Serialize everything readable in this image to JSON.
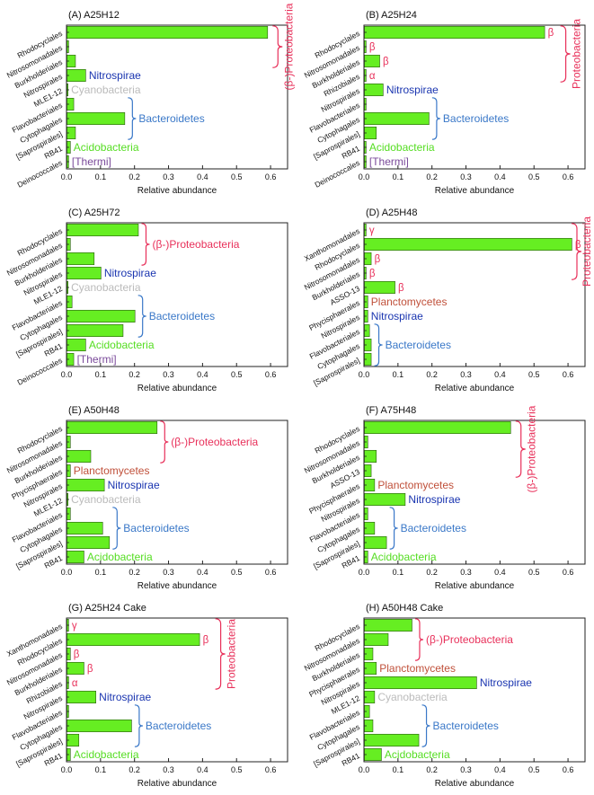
{
  "colors": {
    "bar_fill": "#66ee22",
    "bar_stroke": "#2a5a10",
    "proteo": "#e8305a",
    "nitro": "#1a35b0",
    "bactero": "#3a78c8",
    "acido": "#55dd22",
    "cyano": "#bbbbbb",
    "thermi": "#7a4a9a",
    "plancto": "#c0503a"
  },
  "chart_data": [
    {
      "type": "bar",
      "orientation": "horizontal",
      "title": "(A) A25H12",
      "xlabel": "Relative abundance",
      "xlim": [
        0,
        0.65
      ],
      "xticks": [
        "0.0",
        "0.1",
        "0.2",
        "0.3",
        "0.4",
        "0.5",
        "0.6"
      ],
      "categories": [
        "Rhodocyclales",
        "Nitrosomonadales",
        "Burkholderiales",
        "Nitrospirales",
        "MLE1-12",
        "Flavobacteriales",
        "Cytophagales",
        "[Saprospirales]",
        "RB41",
        "Deinococcales"
      ],
      "values": [
        0.59,
        0.005,
        0.025,
        0.055,
        0.003,
        0.02,
        0.17,
        0.025,
        0.01,
        0.005
      ],
      "annotations": [
        {
          "text": "(β-)Proteobacteria",
          "kind": "proteo",
          "rows": [
            0,
            2
          ],
          "vertical": true
        },
        {
          "text": "Nitrospirae",
          "kind": "nitro",
          "rows": [
            3,
            3
          ]
        },
        {
          "text": "Cyanobacteria",
          "kind": "cyano",
          "rows": [
            4,
            4
          ]
        },
        {
          "text": "Bacteroidetes",
          "kind": "bactero",
          "rows": [
            5,
            7
          ],
          "brace": true
        },
        {
          "text": "Acidobacteria",
          "kind": "acido",
          "rows": [
            8,
            8
          ]
        },
        {
          "text": "[Thermi]",
          "kind": "thermi",
          "rows": [
            9,
            9
          ]
        }
      ],
      "row_labels": []
    },
    {
      "type": "bar",
      "orientation": "horizontal",
      "title": "(B) A25H24",
      "xlabel": "Relative abundance",
      "xlim": [
        0,
        0.65
      ],
      "xticks": [
        "0.0",
        "0.1",
        "0.2",
        "0.3",
        "0.4",
        "0.5",
        "0.6"
      ],
      "categories": [
        "Rhodocyclales",
        "Nitrosomonadales",
        "Burkholderiales",
        "Rhizobiales",
        "Nitrospirales",
        "Flavobacteriales",
        "Cytophagales",
        "[Saprospirales]",
        "RB41",
        "Deinococcales"
      ],
      "values": [
        0.53,
        0.005,
        0.045,
        0.005,
        0.055,
        0.005,
        0.19,
        0.035,
        0.005,
        0.005
      ],
      "annotations": [
        {
          "text": "Proteobacteria",
          "kind": "proteo",
          "rows": [
            0,
            3
          ],
          "vertical": true
        },
        {
          "text": "Nitrospirae",
          "kind": "nitro",
          "rows": [
            4,
            4
          ]
        },
        {
          "text": "Bacteroidetes",
          "kind": "bactero",
          "rows": [
            5,
            7
          ],
          "brace": true
        },
        {
          "text": "Acidobacteria",
          "kind": "acido",
          "rows": [
            8,
            8
          ]
        },
        {
          "text": "[Thermi]",
          "kind": "thermi",
          "rows": [
            9,
            9
          ]
        }
      ],
      "row_labels": [
        {
          "row": 0,
          "text": "β"
        },
        {
          "row": 1,
          "text": "β"
        },
        {
          "row": 2,
          "text": "β"
        },
        {
          "row": 3,
          "text": "α"
        }
      ]
    },
    {
      "type": "bar",
      "orientation": "horizontal",
      "title": "(C) A25H72",
      "xlabel": "Relative abundance",
      "xlim": [
        0,
        0.65
      ],
      "xticks": [
        "0.0",
        "0.1",
        "0.2",
        "0.3",
        "0.4",
        "0.5",
        "0.6"
      ],
      "categories": [
        "Rhodocyclales",
        "Nitrosomonadales",
        "Burkholderiales",
        "Nitrospirales",
        "MLE1-12",
        "Flavobacteriales",
        "Cytophagales",
        "[Saprospirales]",
        "RB41",
        "Deinococcales"
      ],
      "values": [
        0.21,
        0.01,
        0.08,
        0.1,
        0.003,
        0.015,
        0.2,
        0.165,
        0.055,
        0.02
      ],
      "annotations": [
        {
          "text": "(β-)Proteobacteria",
          "kind": "proteo",
          "rows": [
            0,
            2
          ],
          "brace": true
        },
        {
          "text": "Nitrospirae",
          "kind": "nitro",
          "rows": [
            3,
            3
          ]
        },
        {
          "text": "Cyanobacteria",
          "kind": "cyano",
          "rows": [
            4,
            4
          ]
        },
        {
          "text": "Bacteroidetes",
          "kind": "bactero",
          "rows": [
            5,
            7
          ],
          "brace": true
        },
        {
          "text": "Acidobacteria",
          "kind": "acido",
          "rows": [
            8,
            8
          ]
        },
        {
          "text": "[Thermi]",
          "kind": "thermi",
          "rows": [
            9,
            9
          ]
        }
      ],
      "row_labels": []
    },
    {
      "type": "bar",
      "orientation": "horizontal",
      "title": "(D) A25H48",
      "xlabel": "Relative abundance",
      "xlim": [
        0,
        0.65
      ],
      "xticks": [
        "0.0",
        "0.1",
        "0.2",
        "0.3",
        "0.4",
        "0.5",
        "0.6"
      ],
      "categories": [
        "Xanthomonadales",
        "Rhodocyclales",
        "Nitrosomonadales",
        "Burkholderiales",
        "ASSO-13",
        "Phycisphaerales",
        "Nitrospirales",
        "Flavobacteriales",
        "Cytophagales",
        "[Saprospirales]"
      ],
      "values": [
        0.005,
        0.61,
        0.02,
        0.005,
        0.09,
        0.01,
        0.01,
        0.015,
        0.02,
        0.02
      ],
      "annotations": [
        {
          "text": "Proteobacteria",
          "kind": "proteo",
          "rows": [
            0,
            3
          ],
          "vertical": true
        },
        {
          "text": "Planctomycetes",
          "kind": "plancto",
          "rows": [
            5,
            5
          ]
        },
        {
          "text": "Nitrospirae",
          "kind": "nitro",
          "rows": [
            6,
            6
          ]
        },
        {
          "text": "Bacteroidetes",
          "kind": "bactero",
          "rows": [
            7,
            9
          ],
          "brace": true
        }
      ],
      "row_labels": [
        {
          "row": 0,
          "text": "γ"
        },
        {
          "row": 1,
          "text": "β"
        },
        {
          "row": 2,
          "text": "β"
        },
        {
          "row": 3,
          "text": "β"
        },
        {
          "row": 4,
          "text": "β"
        }
      ]
    },
    {
      "type": "bar",
      "orientation": "horizontal",
      "title": "(E) A50H48",
      "xlabel": "Relative abundance",
      "xlim": [
        0,
        0.65
      ],
      "xticks": [
        "0.0",
        "0.1",
        "0.2",
        "0.3",
        "0.4",
        "0.5",
        "0.6"
      ],
      "categories": [
        "Rhodocyclales",
        "Nitrosomonadales",
        "Burkholderiales",
        "Phycisphaerales",
        "Nitrospirales",
        "MLE1-12",
        "Flavobacteriales",
        "Cytophagales",
        "[Saprospirales]",
        "RB41"
      ],
      "values": [
        0.265,
        0.01,
        0.07,
        0.01,
        0.11,
        0.003,
        0.01,
        0.105,
        0.125,
        0.05
      ],
      "annotations": [
        {
          "text": "(β-)Proteobacteria",
          "kind": "proteo",
          "rows": [
            0,
            2
          ],
          "brace": true
        },
        {
          "text": "Planctomycetes",
          "kind": "plancto",
          "rows": [
            3,
            3
          ]
        },
        {
          "text": "Nitrospirae",
          "kind": "nitro",
          "rows": [
            4,
            4
          ]
        },
        {
          "text": "Cyanobacteria",
          "kind": "cyano",
          "rows": [
            5,
            5
          ]
        },
        {
          "text": "Bacteroidetes",
          "kind": "bactero",
          "rows": [
            6,
            8
          ],
          "brace": true
        },
        {
          "text": "Acidobacteria",
          "kind": "acido",
          "rows": [
            9,
            9
          ]
        }
      ],
      "row_labels": []
    },
    {
      "type": "bar",
      "orientation": "horizontal",
      "title": "(F) A75H48",
      "xlabel": "Relative abundance",
      "xlim": [
        0,
        0.65
      ],
      "xticks": [
        "0.0",
        "0.1",
        "0.2",
        "0.3",
        "0.4",
        "0.5",
        "0.6"
      ],
      "categories": [
        "Rhodocyclales",
        "Nitrosomonadales",
        "Burkholderiales",
        "ASSO-13",
        "Phycisphaerales",
        "Nitrospirales",
        "Flavobacteriales",
        "Cytophagales",
        "[Saprospirales]",
        "RB41"
      ],
      "values": [
        0.43,
        0.01,
        0.035,
        0.02,
        0.03,
        0.12,
        0.01,
        0.03,
        0.065,
        0.01
      ],
      "annotations": [
        {
          "text": "(β-)Proteobacteria",
          "kind": "proteo",
          "rows": [
            0,
            3
          ],
          "vertical": true
        },
        {
          "text": "Planctomycetes",
          "kind": "plancto",
          "rows": [
            4,
            4
          ]
        },
        {
          "text": "Nitrospirae",
          "kind": "nitro",
          "rows": [
            5,
            5
          ]
        },
        {
          "text": "Bacteroidetes",
          "kind": "bactero",
          "rows": [
            6,
            8
          ],
          "brace": true
        },
        {
          "text": "Acidobacteria",
          "kind": "acido",
          "rows": [
            9,
            9
          ]
        }
      ],
      "row_labels": []
    },
    {
      "type": "bar",
      "orientation": "horizontal",
      "title": "(G) A25H24 Cake",
      "xlabel": "Relative abundance",
      "xlim": [
        0,
        0.65
      ],
      "xticks": [
        "0.0",
        "0.1",
        "0.2",
        "0.3",
        "0.4",
        "0.5",
        "0.6"
      ],
      "categories": [
        "Xanthomonadales",
        "Rhodocyclales",
        "Nitrosomonadales",
        "Burkholderiales",
        "Rhizobiales",
        "Nitrospirales",
        "Flavobacteriales",
        "Cytophagales",
        "[Saprospirales]",
        "RB41"
      ],
      "values": [
        0.005,
        0.39,
        0.01,
        0.05,
        0.005,
        0.085,
        0.005,
        0.19,
        0.035,
        0.01
      ],
      "annotations": [
        {
          "text": "Proteobacteria",
          "kind": "proteo",
          "rows": [
            0,
            4
          ],
          "vertical": true
        },
        {
          "text": "Nitrospirae",
          "kind": "nitro",
          "rows": [
            5,
            5
          ]
        },
        {
          "text": "Bacteroidetes",
          "kind": "bactero",
          "rows": [
            6,
            8
          ],
          "brace": true
        },
        {
          "text": "Acidobacteria",
          "kind": "acido",
          "rows": [
            9,
            9
          ]
        }
      ],
      "row_labels": [
        {
          "row": 0,
          "text": "γ"
        },
        {
          "row": 1,
          "text": "β"
        },
        {
          "row": 2,
          "text": "β"
        },
        {
          "row": 3,
          "text": "β"
        },
        {
          "row": 4,
          "text": "α"
        }
      ]
    },
    {
      "type": "bar",
      "orientation": "horizontal",
      "title": "(H) A50H48 Cake",
      "xlabel": "Relative abundance",
      "xlim": [
        0,
        0.65
      ],
      "xticks": [
        "0.0",
        "0.1",
        "0.2",
        "0.3",
        "0.4",
        "0.5",
        "0.6"
      ],
      "categories": [
        "Rhodocyclales",
        "Nitrosomonadales",
        "Burkholderiales",
        "Phycisphaerales",
        "Nitrospirales",
        "MLE1-12",
        "Flavobacteriales",
        "Cytophagales",
        "[Saprospirales]",
        "RB41"
      ],
      "values": [
        0.14,
        0.07,
        0.025,
        0.035,
        0.33,
        0.03,
        0.015,
        0.025,
        0.16,
        0.05
      ],
      "annotations": [
        {
          "text": "(β-)Proteobacteria",
          "kind": "proteo",
          "rows": [
            0,
            2
          ],
          "brace": true
        },
        {
          "text": "Planctomycetes",
          "kind": "plancto",
          "rows": [
            3,
            3
          ]
        },
        {
          "text": "Nitrospirae",
          "kind": "nitro",
          "rows": [
            4,
            4
          ]
        },
        {
          "text": "Cyanobacteria",
          "kind": "cyano",
          "rows": [
            5,
            5
          ]
        },
        {
          "text": "Bacteroidetes",
          "kind": "bactero",
          "rows": [
            6,
            8
          ],
          "brace": true
        },
        {
          "text": "Acidobacteria",
          "kind": "acido",
          "rows": [
            9,
            9
          ]
        }
      ],
      "row_labels": []
    }
  ]
}
